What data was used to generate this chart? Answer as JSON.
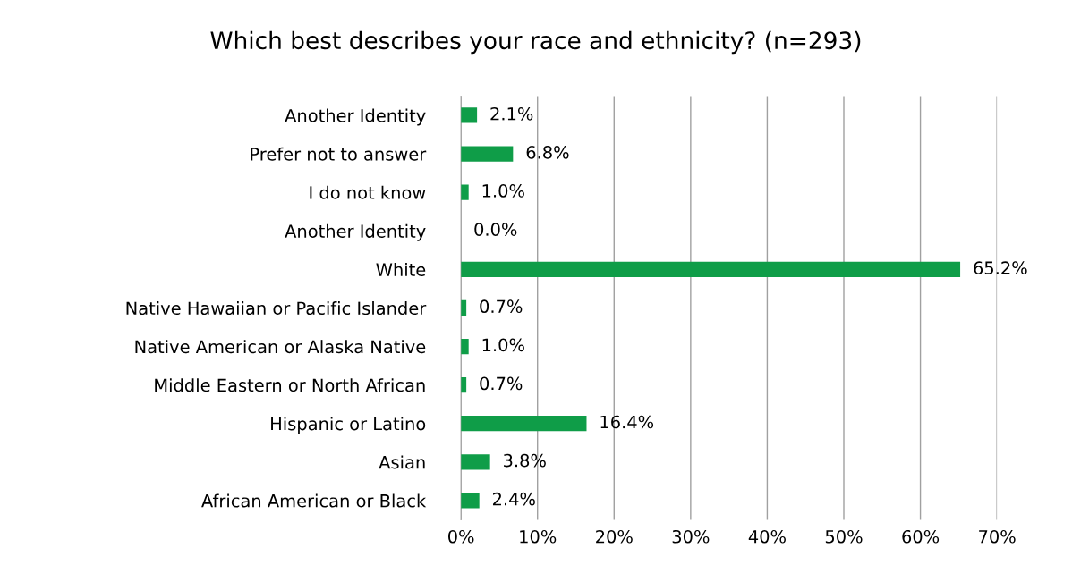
{
  "chart_data": {
    "type": "bar",
    "orientation": "horizontal",
    "title": "Which best describes your race and ethnicity? (n=293)",
    "categories": [
      "Another Identity",
      "Prefer not to answer",
      "I do not know",
      "Another Identity",
      "White",
      "Native Hawaiian or Pacific Islander",
      "Native American or Alaska Native",
      "Middle Eastern or North African",
      "Hispanic or Latino",
      "Asian",
      "African American or Black"
    ],
    "values": [
      2.1,
      6.8,
      1.0,
      0.0,
      65.2,
      0.7,
      1.0,
      0.7,
      16.4,
      3.8,
      2.4
    ],
    "value_labels": [
      "2.1%",
      "6.8%",
      "1.0%",
      "0.0%",
      "65.2%",
      "0.7%",
      "1.0%",
      "0.7%",
      "16.4%",
      "3.8%",
      "2.4%"
    ],
    "color": "#0f9d48",
    "xlim": [
      0,
      70
    ],
    "xticks": [
      {
        "value": 0,
        "label": "0%"
      },
      {
        "value": 10,
        "label": "10%"
      },
      {
        "value": 20,
        "label": "20%"
      },
      {
        "value": 30,
        "label": "30%"
      },
      {
        "value": 40,
        "label": "40%"
      },
      {
        "value": 50,
        "label": "50%"
      },
      {
        "value": 60,
        "label": "60%"
      },
      {
        "value": 70,
        "label": "70%"
      }
    ],
    "grid": "x",
    "legend": false
  }
}
